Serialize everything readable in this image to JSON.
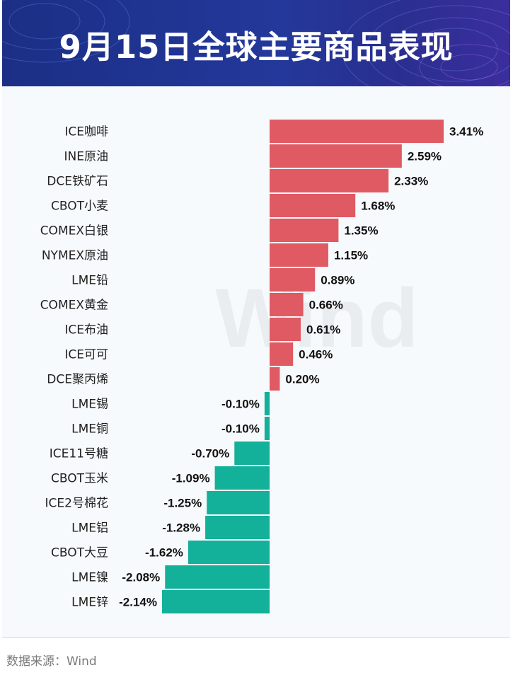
{
  "header": {
    "title": "9月15日全球主要商品表现"
  },
  "watermark": "Wind",
  "source": "数据来源：Wind",
  "colors": {
    "positive": "#e05a63",
    "negative": "#13b09a",
    "header_bg": "#1f3290",
    "label": "#222222",
    "value": "#111111"
  },
  "chart_data": {
    "type": "bar",
    "orientation": "horizontal",
    "unit": "%",
    "categories": [
      "ICE咖啡",
      "INE原油",
      "DCE铁矿石",
      "CBOT小麦",
      "COMEX白银",
      "NYMEX原油",
      "LME铅",
      "COMEX黄金",
      "ICE布油",
      "ICE可可",
      "DCE聚丙烯",
      "LME锡",
      "LME铜",
      "ICE11号糖",
      "CBOT玉米",
      "ICE2号棉花",
      "LME铝",
      "CBOT大豆",
      "LME镍",
      "LME锌"
    ],
    "values": [
      3.41,
      2.59,
      2.33,
      1.68,
      1.35,
      1.15,
      0.89,
      0.66,
      0.61,
      0.46,
      0.2,
      -0.1,
      -0.1,
      -0.7,
      -1.09,
      -1.25,
      -1.28,
      -1.62,
      -2.08,
      -2.14
    ],
    "value_labels": [
      "3.41%",
      "2.59%",
      "2.33%",
      "1.68%",
      "1.35%",
      "1.15%",
      "0.89%",
      "0.66%",
      "0.61%",
      "0.46%",
      "0.20%",
      "-0.10%",
      "-0.10%",
      "-0.70%",
      "-1.09%",
      "-1.25%",
      "-1.28%",
      "-1.62%",
      "-2.08%",
      "-2.14%"
    ],
    "xlim": [
      -2.14,
      3.41
    ],
    "grid": false,
    "legend": "none"
  }
}
